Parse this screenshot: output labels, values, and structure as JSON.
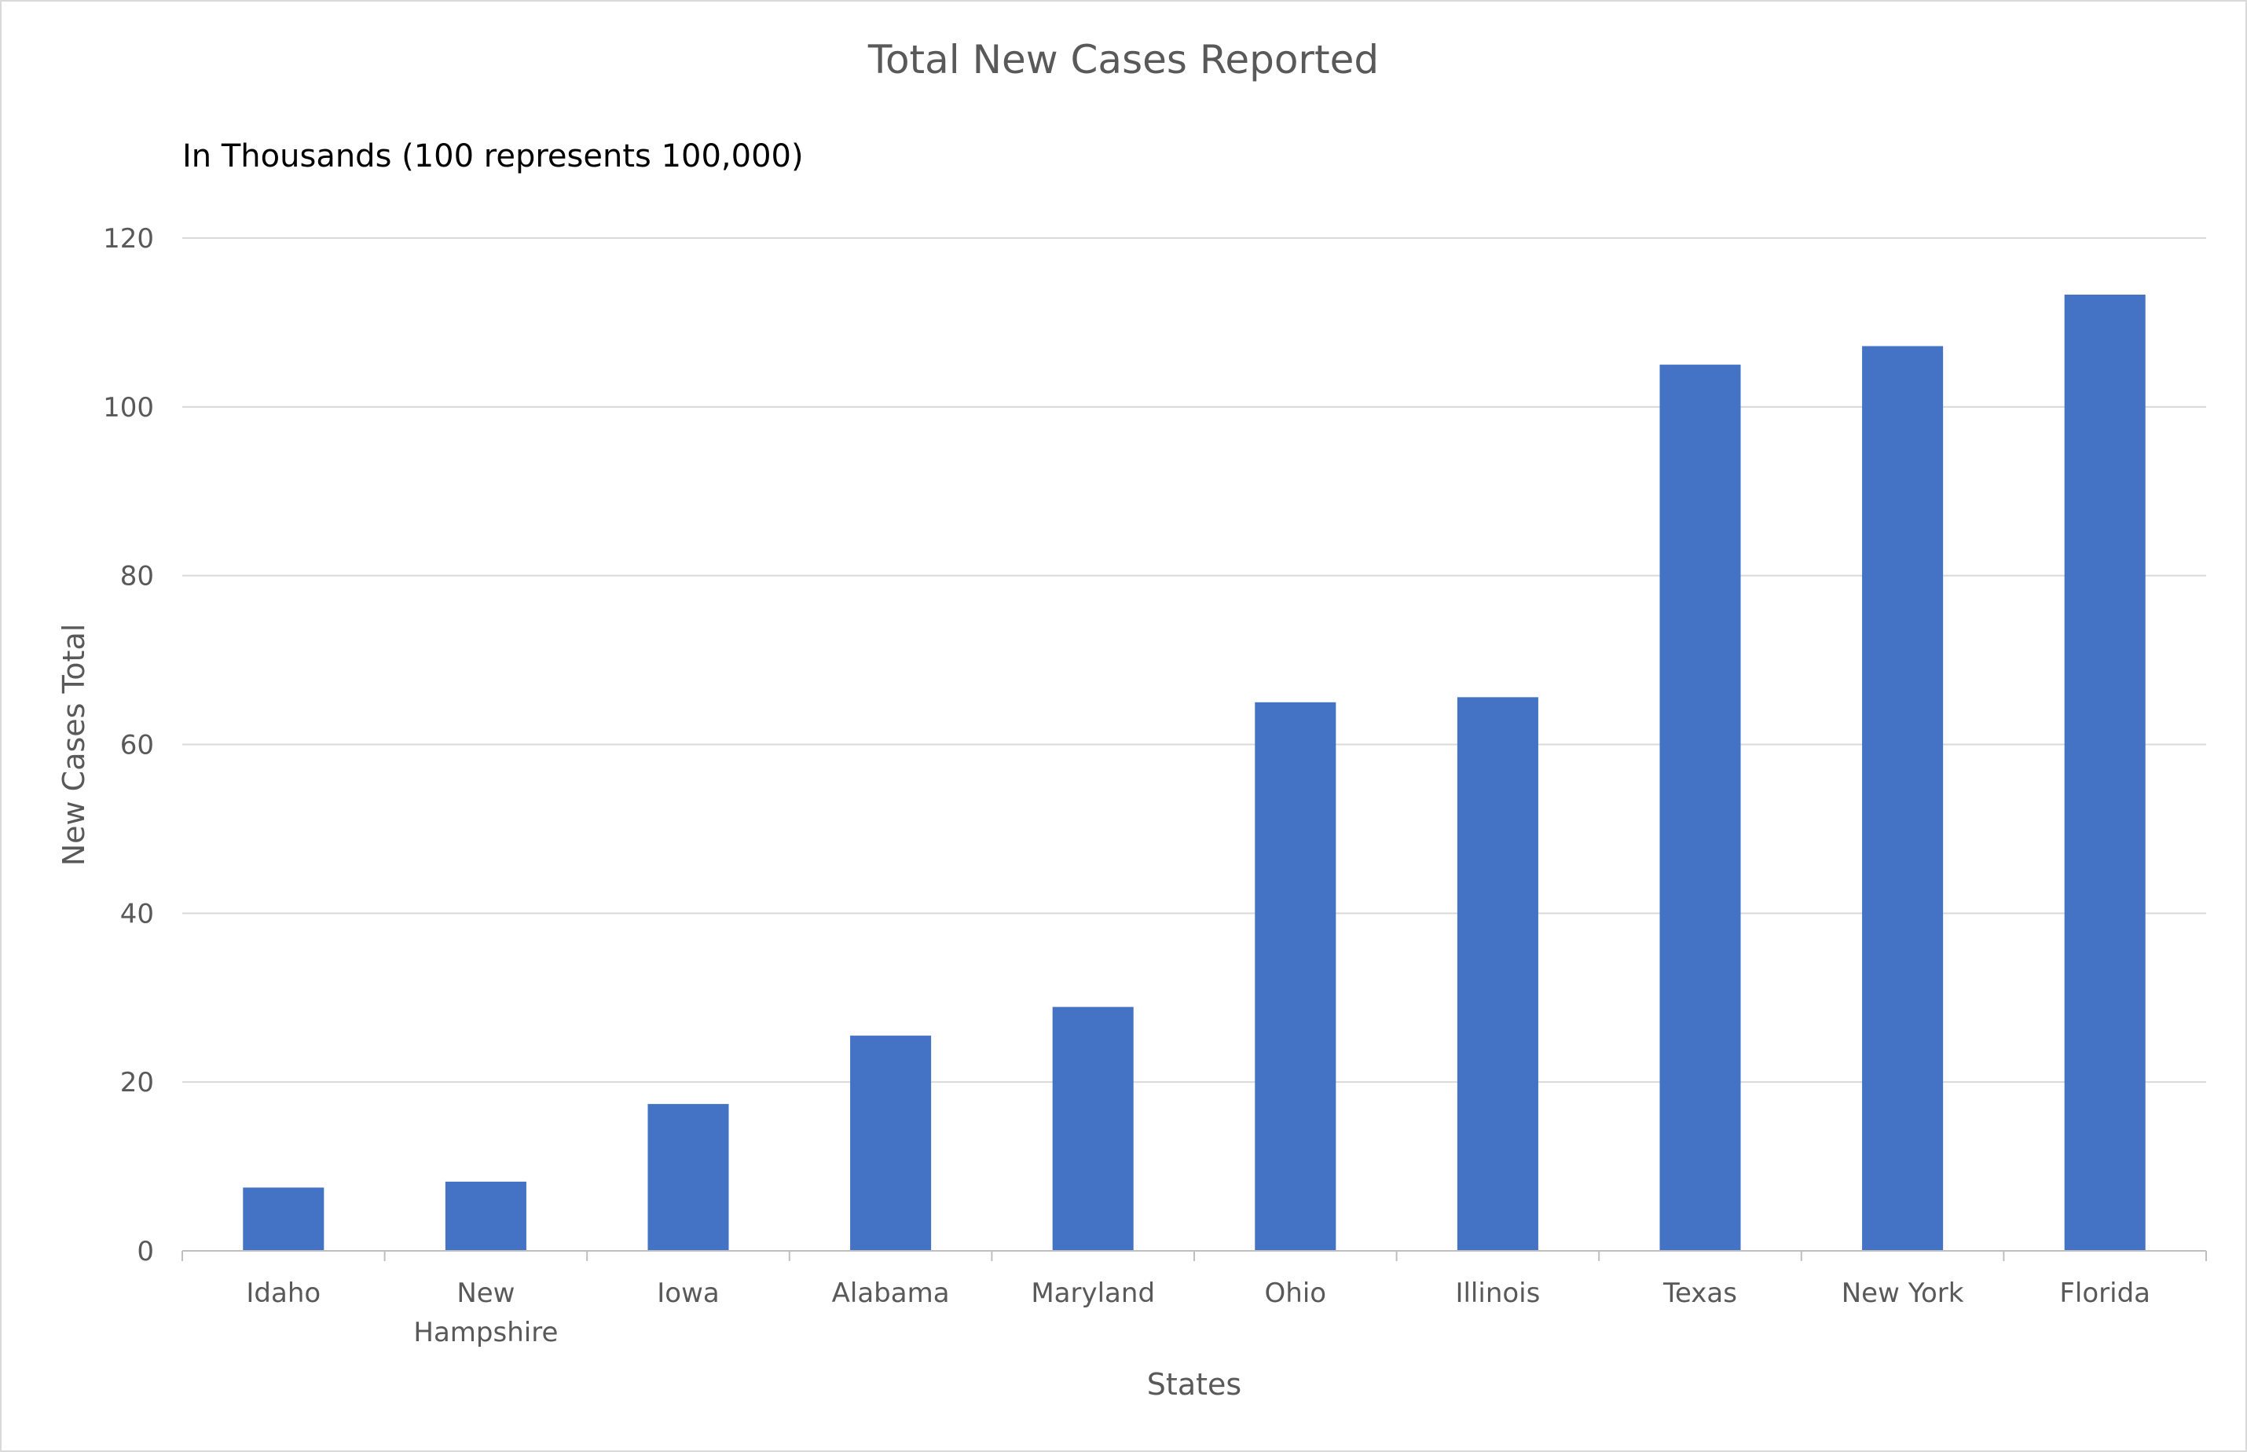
{
  "chart_data": {
    "type": "bar",
    "title": "Total New Cases Reported",
    "subtitle": "In Thousands (100 represents 100,000)",
    "xlabel": "States",
    "ylabel": "New Cases Total",
    "categories": [
      "Idaho",
      "New Hampshire",
      "Iowa",
      "Alabama",
      "Maryland",
      "Ohio",
      "Illinois",
      "Texas",
      "New York",
      "Florida"
    ],
    "category_lines": [
      [
        "Idaho"
      ],
      [
        "New",
        "Hampshire"
      ],
      [
        "Iowa"
      ],
      [
        "Alabama"
      ],
      [
        "Maryland"
      ],
      [
        "Ohio"
      ],
      [
        "Illinois"
      ],
      [
        "Texas"
      ],
      [
        "New York"
      ],
      [
        "Florida"
      ]
    ],
    "values": [
      7.5,
      8.2,
      17.4,
      25.5,
      28.9,
      65.0,
      65.6,
      105.0,
      107.2,
      113.3
    ],
    "ylim": [
      0,
      120
    ],
    "yticks": [
      0,
      20,
      40,
      60,
      80,
      100,
      120
    ],
    "grid": true,
    "legend": "none",
    "bar_color": "#4472c4"
  }
}
